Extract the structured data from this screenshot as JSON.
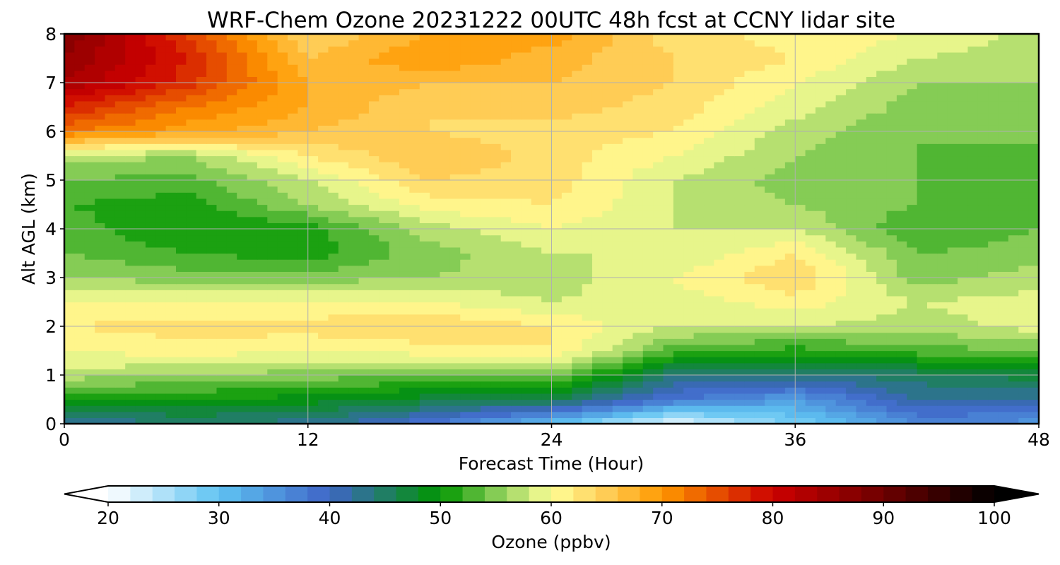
{
  "chart_data": {
    "type": "heatmap",
    "title": "WRF-Chem Ozone  20231222 00UTC 48h fcst at CCNY lidar site",
    "xlabel": "Forecast Time (Hour)",
    "ylabel": "Alt AGL (km)",
    "xlim": [
      0,
      48
    ],
    "ylim": [
      0,
      8
    ],
    "xticks": [
      0,
      12,
      24,
      36,
      48
    ],
    "yticks": [
      0,
      1,
      2,
      3,
      4,
      5,
      6,
      7,
      8
    ],
    "grid": true,
    "x": [
      0,
      6,
      12,
      18,
      24,
      30,
      36,
      42,
      48
    ],
    "y": [
      0,
      0.5,
      1,
      1.5,
      2,
      2.5,
      3,
      3.5,
      4,
      4.5,
      5,
      5.5,
      6,
      6.5,
      7,
      7.5,
      8
    ],
    "z": [
      [
        42,
        44,
        43,
        38,
        30,
        21,
        28,
        36,
        35
      ],
      [
        50,
        50,
        49,
        47,
        46,
        38,
        34,
        42,
        42
      ],
      [
        57,
        56,
        55,
        54,
        55,
        44,
        44,
        45,
        47
      ],
      [
        60,
        61,
        60,
        61,
        62,
        53,
        51,
        53,
        54
      ],
      [
        62,
        63,
        63,
        64,
        62,
        58,
        58,
        57,
        59
      ],
      [
        60,
        60,
        60,
        60,
        58,
        59,
        61,
        58,
        59
      ],
      [
        56,
        55,
        55,
        56,
        57,
        60,
        64,
        55,
        57
      ],
      [
        54,
        52,
        51,
        55,
        58,
        58,
        62,
        54,
        55
      ],
      [
        53,
        50,
        51,
        57,
        60,
        58,
        58,
        52,
        54
      ],
      [
        52,
        51,
        56,
        61,
        62,
        58,
        56,
        54,
        54
      ],
      [
        54,
        53,
        58,
        64,
        63,
        58,
        55,
        54,
        53
      ],
      [
        57,
        56,
        62,
        66,
        63,
        60,
        56,
        54,
        53
      ],
      [
        72,
        69,
        66,
        64,
        63,
        62,
        57,
        54,
        55
      ],
      [
        78,
        72,
        68,
        64,
        65,
        63,
        59,
        55,
        55
      ],
      [
        84,
        77,
        68,
        66,
        66,
        64,
        60,
        56,
        56
      ],
      [
        86,
        78,
        66,
        70,
        67,
        64,
        62,
        58,
        57
      ],
      [
        88,
        76,
        64,
        68,
        69,
        63,
        61,
        60,
        57
      ]
    ],
    "colorbar": {
      "label": "Ozone  (ppbv)",
      "min": 20,
      "max": 100,
      "step": 2,
      "ticks": [
        20,
        30,
        40,
        50,
        60,
        70,
        80,
        90,
        100
      ],
      "extend": "both",
      "stops": [
        [
          20,
          "#ffffff"
        ],
        [
          30,
          "#5fc3f2"
        ],
        [
          40,
          "#3f65c7"
        ],
        [
          50,
          "#009600"
        ],
        [
          55,
          "#85cc55"
        ],
        [
          60,
          "#ffff99"
        ],
        [
          65,
          "#ffcc55"
        ],
        [
          70,
          "#ff9900"
        ],
        [
          80,
          "#cc0000"
        ],
        [
          90,
          "#6e0000"
        ],
        [
          100,
          "#000000"
        ]
      ]
    }
  }
}
